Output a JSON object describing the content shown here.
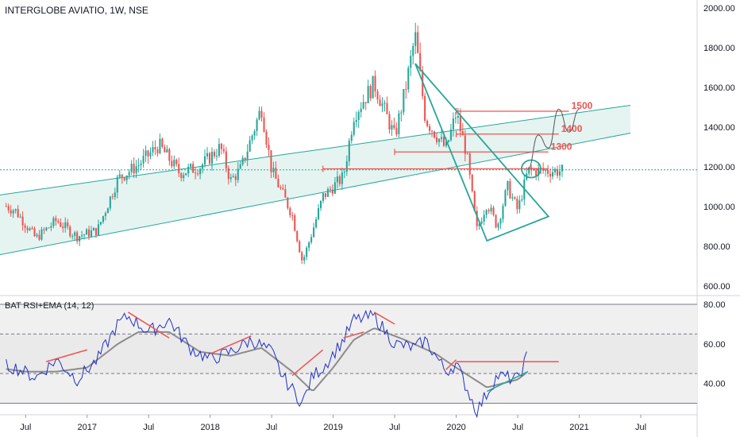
{
  "header": {
    "title": "INTERGLOBE AVIATIO, 1W, NSE"
  },
  "indicator": {
    "title": "BAT RSI+EMA (14, 12)"
  },
  "colors": {
    "up": "#26a69a",
    "down": "#ef5350",
    "teal": "#26a69a",
    "red": "#ef5350",
    "rsi": "#2130c8",
    "ema": "#8c8c8c",
    "channel_fill": "#e0f2ef",
    "band_fill": "#f0f0f0"
  },
  "chart_data": [
    {
      "type": "candlestick",
      "title": "INTERGLOBE AVIATIO, 1W, NSE",
      "ylim": [
        560,
        2040
      ],
      "y_ticks": [
        "2000.00",
        "1800.00",
        "1600.00",
        "1400.00",
        "1200.00",
        "1000.00",
        "800.00",
        "600.00"
      ],
      "y_tick_values": [
        2000,
        1800,
        1600,
        1400,
        1200,
        1000,
        800,
        600
      ],
      "x_ticks": [
        "Jul",
        "2017",
        "Jul",
        "2018",
        "Jul",
        "2019",
        "Jul",
        "2020",
        "Jul",
        "2021",
        "Jul"
      ],
      "x_tick_dates": [
        "2016-07",
        "2017-01",
        "2017-07",
        "2018-01",
        "2018-07",
        "2019-01",
        "2019-07",
        "2020-01",
        "2020-07",
        "2021-01",
        "2021-07"
      ],
      "close_anchors": [
        [
          "2016-04",
          1030
        ],
        [
          "2016-06",
          980
        ],
        [
          "2016-08",
          840
        ],
        [
          "2016-10",
          930
        ],
        [
          "2016-12",
          850
        ],
        [
          "2017-02",
          880
        ],
        [
          "2017-04",
          1140
        ],
        [
          "2017-06",
          1210
        ],
        [
          "2017-08",
          1310
        ],
        [
          "2017-10",
          1170
        ],
        [
          "2017-12",
          1200
        ],
        [
          "2018-02",
          1300
        ],
        [
          "2018-03",
          1130
        ],
        [
          "2018-04",
          1190
        ],
        [
          "2018-06",
          1500
        ],
        [
          "2018-07",
          1180
        ],
        [
          "2018-09",
          960
        ],
        [
          "2018-10",
          720
        ],
        [
          "2018-11",
          880
        ],
        [
          "2018-12",
          1050
        ],
        [
          "2019-02",
          1150
        ],
        [
          "2019-03",
          1460
        ],
        [
          "2019-05",
          1620
        ],
        [
          "2019-07",
          1350
        ],
        [
          "2019-08",
          1580
        ],
        [
          "2019-09",
          1860
        ],
        [
          "2019-10",
          1440
        ],
        [
          "2019-12",
          1290
        ],
        [
          "2020-01",
          1470
        ],
        [
          "2020-02",
          1270
        ],
        [
          "2020-03",
          880
        ],
        [
          "2020-04",
          1020
        ],
        [
          "2020-05",
          900
        ],
        [
          "2020-06",
          1100
        ],
        [
          "2020-07",
          980
        ],
        [
          "2020-08",
          1180
        ]
      ],
      "drawings": {
        "channel_upper": [
          [
            "2016-04",
            1055
          ],
          [
            "2021-06",
            1510
          ]
        ],
        "channel_lower": [
          [
            "2016-04",
            753
          ],
          [
            "2021-06",
            1370
          ]
        ],
        "triangle_points": [
          [
            "2019-09",
            1720
          ],
          [
            "2020-10",
            950
          ],
          [
            "2020-04",
            828
          ]
        ],
        "levels": [
          {
            "label": "1500",
            "from": "2020-01",
            "to": "2020-12",
            "value": 1480
          },
          {
            "label": "1400",
            "from": "2020-01",
            "to": "2020-11",
            "value": 1365
          },
          {
            "label": "1300",
            "from": "2019-07",
            "to": "2020-10",
            "value": 1275
          },
          {
            "label": "",
            "from": "2018-12",
            "to": "2020-10",
            "value": 1190
          }
        ],
        "current_price_line": 1185,
        "projection": [
          [
            "2020-08",
            1190
          ],
          [
            "2020-09",
            1360
          ],
          [
            "2020-10",
            1295
          ],
          [
            "2020-11",
            1490
          ],
          [
            "2020-12",
            1375
          ],
          [
            "2021-01",
            1490
          ]
        ]
      }
    },
    {
      "type": "line",
      "title": "BAT RSI+EMA (14, 12)",
      "ylim": [
        25,
        82
      ],
      "y_ticks": [
        "80.00",
        "60.00",
        "40.00"
      ],
      "y_tick_values": [
        80,
        60,
        40
      ],
      "bands": {
        "outer": [
          30,
          80
        ],
        "inner": [
          45,
          65
        ]
      },
      "series": [
        {
          "role": "rsi",
          "anchors": [
            [
              "2016-04",
              50
            ],
            [
              "2016-06",
              48
            ],
            [
              "2016-08",
              43
            ],
            [
              "2016-10",
              52
            ],
            [
              "2016-12",
              42
            ],
            [
              "2017-02",
              52
            ],
            [
              "2017-04",
              70
            ],
            [
              "2017-05",
              74
            ],
            [
              "2017-07",
              66
            ],
            [
              "2017-09",
              72
            ],
            [
              "2017-11",
              58
            ],
            [
              "2018-01",
              52
            ],
            [
              "2018-03",
              56
            ],
            [
              "2018-05",
              62
            ],
            [
              "2018-07",
              56
            ],
            [
              "2018-08",
              44
            ],
            [
              "2018-10",
              30
            ],
            [
              "2018-11",
              44
            ],
            [
              "2018-12",
              48
            ],
            [
              "2019-02",
              62
            ],
            [
              "2019-03",
              72
            ],
            [
              "2019-05",
              74
            ],
            [
              "2019-07",
              60
            ],
            [
              "2019-09",
              58
            ],
            [
              "2019-10",
              62
            ],
            [
              "2019-12",
              46
            ],
            [
              "2020-01",
              50
            ],
            [
              "2020-03",
              26
            ],
            [
              "2020-05",
              44
            ],
            [
              "2020-07",
              42
            ],
            [
              "2020-08",
              55
            ]
          ]
        },
        {
          "role": "ema",
          "anchors": [
            [
              "2016-04",
              48
            ],
            [
              "2016-07",
              46
            ],
            [
              "2016-10",
              46
            ],
            [
              "2017-01",
              48
            ],
            [
              "2017-04",
              60
            ],
            [
              "2017-06",
              66
            ],
            [
              "2017-09",
              66
            ],
            [
              "2017-12",
              56
            ],
            [
              "2018-03",
              54
            ],
            [
              "2018-06",
              58
            ],
            [
              "2018-09",
              46
            ],
            [
              "2018-11",
              36
            ],
            [
              "2019-01",
              48
            ],
            [
              "2019-03",
              62
            ],
            [
              "2019-05",
              68
            ],
            [
              "2019-08",
              62
            ],
            [
              "2019-11",
              55
            ],
            [
              "2020-01",
              48
            ],
            [
              "2020-04",
              38
            ],
            [
              "2020-07",
              42
            ],
            [
              "2020-08",
              46
            ]
          ]
        }
      ],
      "drawings": {
        "divergence_lines": [
          [
            [
              "2016-09",
              51
            ],
            [
              "2017-01",
              57
            ]
          ],
          [
            [
              "2017-05",
              76
            ],
            [
              "2017-09",
              63
            ]
          ],
          [
            [
              "2018-01",
              55
            ],
            [
              "2018-05",
              64
            ]
          ],
          [
            [
              "2018-09",
              44
            ],
            [
              "2018-12",
              57
            ]
          ],
          [
            [
              "2019-02",
              63
            ],
            [
              "2019-04",
              66
            ]
          ],
          [
            [
              "2019-05",
              76
            ],
            [
              "2019-07",
              70
            ]
          ],
          [
            [
              "2019-12",
              47
            ],
            [
              "2020-01",
              52
            ]
          ],
          [
            [
              "2020-01",
              51
            ],
            [
              "2020-11",
              51
            ]
          ]
        ],
        "support_line": [
          [
            "2020-04",
            36
          ],
          [
            "2020-08",
            46
          ]
        ]
      }
    }
  ]
}
